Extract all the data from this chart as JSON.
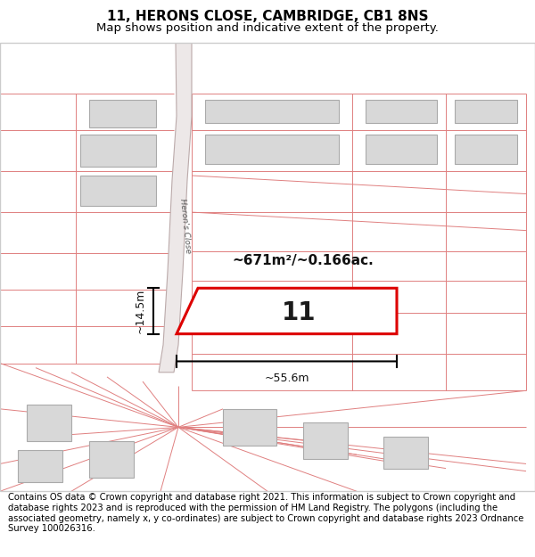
{
  "title_line1": "11, HERONS CLOSE, CAMBRIDGE, CB1 8NS",
  "title_line2": "Map shows position and indicative extent of the property.",
  "footer_text": "Contains OS data © Crown copyright and database right 2021. This information is subject to Crown copyright and database rights 2023 and is reproduced with the permission of HM Land Registry. The polygons (including the associated geometry, namely x, y co-ordinates) are subject to Crown copyright and database rights 2023 Ordnance Survey 100026316.",
  "bg_color": "#ffffff",
  "map_bg": "#ffffff",
  "plot_outline_color": "#dd0000",
  "lot_line_color": "#e08080",
  "building_fill": "#d8d8d8",
  "building_outline": "#aaaaaa",
  "road_fill": "#e8e0e0",
  "road_outline": "#bbaaaa",
  "road_label": "Heron's Close",
  "area_label": "~671m²/~0.166ac.",
  "plot_number": "11",
  "dim_width": "~55.6m",
  "dim_height": "~14.5m",
  "title_fontsize": 11,
  "subtitle_fontsize": 9.5,
  "footer_fontsize": 7.2
}
